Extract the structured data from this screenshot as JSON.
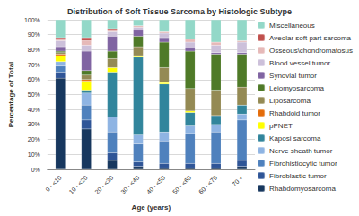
{
  "chart_data": {
    "type": "bar",
    "title": "Distribution of Soft Tissue Sarcoma by Histologic Subtype",
    "x_label": "Age (years)",
    "y_label": "Percentage of Total",
    "categories": [
      "0 - <10",
      "10 - <20",
      "20 - <30",
      "30 - <40",
      "40 - <50",
      "50 - <60",
      "60 - <70",
      "70 +"
    ],
    "stacked": true,
    "grid": true,
    "legend": "right",
    "ylim": [
      0,
      100
    ],
    "yticks": [
      {
        "value": 0,
        "label": "0%"
      },
      {
        "value": 10,
        "label": "10%"
      },
      {
        "value": 20,
        "label": "20%"
      },
      {
        "value": 30,
        "label": "30%"
      },
      {
        "value": 40,
        "label": "40%"
      },
      {
        "value": 50,
        "label": "50%"
      },
      {
        "value": 60,
        "label": "60%"
      },
      {
        "value": 70,
        "label": "70%"
      },
      {
        "value": 80,
        "label": "80%"
      },
      {
        "value": 90,
        "label": "90%"
      },
      {
        "value": 100,
        "label": "100%"
      }
    ],
    "series": [
      {
        "name": "Rhabdomyosarcoma",
        "color": "#17375e",
        "values": [
          61,
          27,
          6,
          2,
          1,
          1,
          1,
          2
        ]
      },
      {
        "name": "Fibroblastic tumor",
        "color": "#2f5597",
        "values": [
          4,
          6,
          5,
          3,
          3,
          3,
          3,
          4
        ]
      },
      {
        "name": "Fibrohistiocytic tumor",
        "color": "#4f81bd",
        "values": [
          4,
          10,
          14,
          12,
          15,
          20,
          21,
          27
        ]
      },
      {
        "name": "Nerve sheath tumor",
        "color": "#8eb4e3",
        "values": [
          3,
          8,
          10,
          6,
          6,
          5,
          5,
          4
        ]
      },
      {
        "name": "Kaposi sarcoma",
        "color": "#31859c",
        "values": [
          0,
          2,
          30,
          52,
          32,
          9,
          6,
          6
        ]
      },
      {
        "name": "pPNET",
        "color": "#ffff00",
        "values": [
          4,
          6,
          3,
          1,
          1,
          1,
          0,
          0
        ]
      },
      {
        "name": "Rhabdoid tumor",
        "color": "#e46c0a",
        "values": [
          1,
          1,
          0,
          0,
          0,
          0,
          0,
          0
        ]
      },
      {
        "name": "Liposarcoma",
        "color": "#948a54",
        "values": [
          1,
          3,
          6,
          6,
          10,
          15,
          17,
          12
        ]
      },
      {
        "name": "Leiomyosarcoma",
        "color": "#4f7a28",
        "values": [
          1,
          3,
          5,
          7,
          17,
          25,
          24,
          22
        ]
      },
      {
        "name": "Synovial tumor",
        "color": "#8064a2",
        "values": [
          3,
          13,
          10,
          4,
          3,
          2,
          1,
          1
        ]
      },
      {
        "name": "Blood vessel tumor",
        "color": "#ccc0da",
        "values": [
          4,
          4,
          3,
          2,
          3,
          4,
          5,
          7
        ]
      },
      {
        "name": "Osseous\\chondromatosus",
        "color": "#e6b9b8",
        "values": [
          1,
          3,
          1,
          1,
          1,
          2,
          2,
          1
        ]
      },
      {
        "name": "Aveolar soft part sarcoma",
        "color": "#c0504d",
        "values": [
          1,
          2,
          1,
          0,
          0,
          0,
          0,
          0
        ]
      },
      {
        "name": "Miscellaneous",
        "color": "#93d8c8",
        "values": [
          12,
          12,
          6,
          4,
          8,
          13,
          15,
          14
        ]
      }
    ]
  }
}
